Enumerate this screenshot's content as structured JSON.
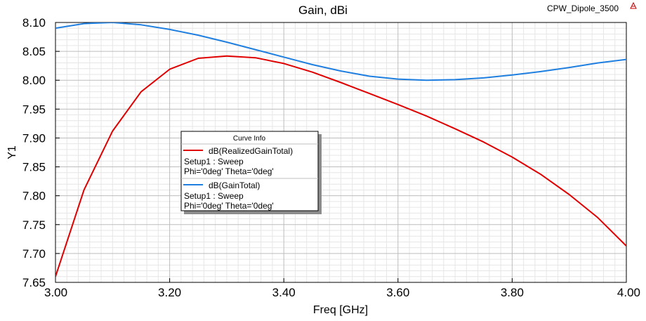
{
  "window": {
    "design_name": "CPW_Dipole_3500"
  },
  "chart_data": {
    "type": "line",
    "title": "Gain, dBi",
    "xlabel": "Freq [GHz]",
    "ylabel": "Y1",
    "xlim": [
      3.0,
      4.0
    ],
    "ylim": [
      7.65,
      8.1
    ],
    "x_ticks": [
      "3.00",
      "3.20",
      "3.40",
      "3.60",
      "3.80",
      "4.00"
    ],
    "y_ticks": [
      "7.65",
      "7.70",
      "7.75",
      "7.80",
      "7.85",
      "7.90",
      "7.95",
      "8.00",
      "8.05",
      "8.10"
    ],
    "grid": true,
    "legend": {
      "title": "Curve Info",
      "placement": "center-left"
    },
    "series": [
      {
        "name": "dB(RealizedGainTotal)",
        "setup": "Setup1 : Sweep",
        "params": "Phi='0deg' Theta='0deg'",
        "color": "#e00000",
        "x": [
          3.0,
          3.05,
          3.1,
          3.15,
          3.2,
          3.25,
          3.3,
          3.35,
          3.4,
          3.45,
          3.5,
          3.55,
          3.6,
          3.65,
          3.7,
          3.75,
          3.8,
          3.85,
          3.9,
          3.95,
          4.0
        ],
        "y": [
          7.66,
          7.81,
          7.912,
          7.98,
          8.019,
          8.038,
          8.042,
          8.039,
          8.029,
          8.014,
          7.996,
          7.977,
          7.958,
          7.938,
          7.916,
          7.893,
          7.867,
          7.837,
          7.802,
          7.762,
          7.713
        ]
      },
      {
        "name": "dB(GainTotal)",
        "setup": "Setup1 : Sweep",
        "params": "Phi='0deg' Theta='0deg'",
        "color": "#1f7fe0",
        "x": [
          3.0,
          3.05,
          3.1,
          3.15,
          3.2,
          3.25,
          3.3,
          3.35,
          3.4,
          3.45,
          3.5,
          3.55,
          3.6,
          3.65,
          3.7,
          3.75,
          3.8,
          3.85,
          3.9,
          3.95,
          4.0
        ],
        "y": [
          8.09,
          8.098,
          8.1,
          8.096,
          8.088,
          8.078,
          8.066,
          8.053,
          8.04,
          8.027,
          8.016,
          8.007,
          8.002,
          8.0,
          8.001,
          8.004,
          8.009,
          8.015,
          8.022,
          8.03,
          8.036
        ]
      }
    ]
  }
}
